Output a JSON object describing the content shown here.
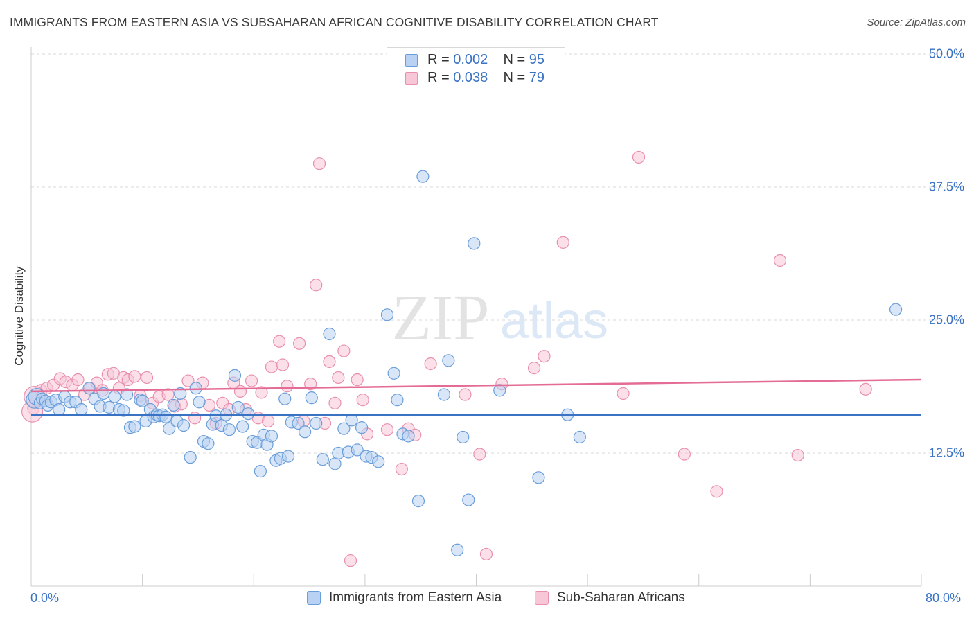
{
  "title": "IMMIGRANTS FROM EASTERN ASIA VS SUBSAHARAN AFRICAN COGNITIVE DISABILITY CORRELATION CHART",
  "source": "Source: ZipAtlas.com",
  "watermark": {
    "zip": "ZIP",
    "atlas": "atlas"
  },
  "legend_top": {
    "rows": [
      {
        "r_label": "R = ",
        "r_value": "0.002",
        "n_label": "N = ",
        "n_value": "95"
      },
      {
        "r_label": "R = ",
        "r_value": "0.038",
        "n_label": "N = ",
        "n_value": "79"
      }
    ]
  },
  "colors": {
    "blue_fill": "#b9d2f3",
    "blue_stroke": "#6a9ed9",
    "blue_line": "#3a72c4",
    "pink_fill": "#f7c7d7",
    "pink_stroke": "#e98fae",
    "pink_line": "#e46b95",
    "tick_text": "#3a72c4",
    "grid": "#d9d9d9"
  },
  "chart_data": {
    "type": "scatter",
    "title": "IMMIGRANTS FROM EASTERN ASIA VS SUBSAHARAN AFRICAN COGNITIVE DISABILITY CORRELATION CHART",
    "xlabel": "",
    "ylabel": "Cognitive Disability",
    "xlim": [
      0,
      80
    ],
    "ylim": [
      0,
      50
    ],
    "x_tick_labels": [
      "0.0%",
      "80.0%"
    ],
    "y_ticks": [
      12.5,
      25.0,
      37.5,
      50.0
    ],
    "y_tick_labels": [
      "12.5%",
      "25.0%",
      "37.5%",
      "50.0%"
    ],
    "grid": "horizontal dashed",
    "legend_position": "top-center and bottom",
    "series": [
      {
        "name": "Immigrants from Eastern Asia",
        "color": "#6a9ed9",
        "R": 0.002,
        "N": 95,
        "trend": {
          "x": [
            0,
            80
          ],
          "y": [
            16.1,
            16.1
          ]
        },
        "points": [
          [
            0.3,
            17.5
          ],
          [
            0.5,
            17.8
          ],
          [
            0.8,
            17.2
          ],
          [
            1.0,
            17.6
          ],
          [
            1.3,
            17.4
          ],
          [
            1.5,
            17.0
          ],
          [
            1.8,
            17.3
          ],
          [
            2.2,
            17.5
          ],
          [
            2.5,
            16.6
          ],
          [
            3.0,
            17.8
          ],
          [
            3.5,
            17.3
          ],
          [
            4.0,
            17.3
          ],
          [
            4.5,
            16.6
          ],
          [
            5.2,
            18.6
          ],
          [
            5.7,
            17.6
          ],
          [
            6.2,
            16.9
          ],
          [
            6.5,
            18.1
          ],
          [
            7.0,
            16.8
          ],
          [
            7.5,
            17.8
          ],
          [
            7.9,
            16.6
          ],
          [
            8.3,
            16.5
          ],
          [
            8.6,
            18.0
          ],
          [
            8.9,
            14.9
          ],
          [
            9.3,
            15.0
          ],
          [
            9.8,
            17.5
          ],
          [
            10.0,
            17.4
          ],
          [
            10.3,
            15.5
          ],
          [
            10.7,
            16.6
          ],
          [
            11.0,
            15.9
          ],
          [
            11.3,
            16.1
          ],
          [
            11.5,
            16.0
          ],
          [
            11.8,
            16.1
          ],
          [
            12.1,
            15.9
          ],
          [
            12.4,
            14.8
          ],
          [
            12.8,
            17.0
          ],
          [
            13.1,
            15.5
          ],
          [
            13.4,
            18.1
          ],
          [
            13.7,
            15.1
          ],
          [
            14.3,
            12.1
          ],
          [
            14.8,
            18.6
          ],
          [
            15.1,
            17.3
          ],
          [
            15.5,
            13.6
          ],
          [
            15.9,
            13.4
          ],
          [
            16.3,
            15.2
          ],
          [
            16.6,
            16.0
          ],
          [
            17.1,
            15.1
          ],
          [
            17.5,
            16.1
          ],
          [
            17.8,
            14.7
          ],
          [
            18.3,
            19.8
          ],
          [
            18.6,
            16.8
          ],
          [
            19.0,
            15.0
          ],
          [
            19.5,
            16.2
          ],
          [
            19.9,
            13.6
          ],
          [
            20.3,
            13.5
          ],
          [
            20.6,
            10.8
          ],
          [
            20.9,
            14.2
          ],
          [
            21.2,
            13.3
          ],
          [
            21.6,
            14.1
          ],
          [
            22.0,
            11.8
          ],
          [
            22.4,
            12.0
          ],
          [
            22.8,
            17.6
          ],
          [
            23.1,
            12.2
          ],
          [
            23.4,
            15.4
          ],
          [
            24.0,
            15.3
          ],
          [
            24.6,
            14.5
          ],
          [
            25.2,
            17.7
          ],
          [
            25.6,
            15.3
          ],
          [
            26.2,
            11.9
          ],
          [
            26.8,
            23.7
          ],
          [
            27.3,
            11.5
          ],
          [
            27.6,
            12.5
          ],
          [
            28.1,
            14.8
          ],
          [
            28.5,
            12.6
          ],
          [
            28.8,
            15.6
          ],
          [
            29.3,
            12.8
          ],
          [
            29.7,
            14.9
          ],
          [
            30.1,
            12.2
          ],
          [
            30.6,
            12.1
          ],
          [
            31.2,
            11.7
          ],
          [
            32.0,
            25.5
          ],
          [
            32.6,
            20.0
          ],
          [
            32.9,
            17.5
          ],
          [
            33.4,
            14.3
          ],
          [
            33.9,
            14.1
          ],
          [
            34.8,
            8.0
          ],
          [
            35.2,
            38.5
          ],
          [
            37.1,
            18.0
          ],
          [
            37.5,
            21.2
          ],
          [
            38.3,
            3.4
          ],
          [
            38.8,
            14.0
          ],
          [
            39.3,
            8.1
          ],
          [
            39.8,
            32.2
          ],
          [
            42.1,
            18.4
          ],
          [
            45.6,
            10.2
          ],
          [
            48.2,
            16.1
          ],
          [
            49.3,
            14.0
          ],
          [
            77.7,
            26.0
          ]
        ]
      },
      {
        "name": "Sub-Saharan Africans",
        "color": "#e98fae",
        "R": 0.038,
        "N": 79,
        "trend": {
          "x": [
            0,
            80
          ],
          "y": [
            18.3,
            19.4
          ]
        },
        "points": [
          [
            0.2,
            16.7
          ],
          [
            0.5,
            17.4
          ],
          [
            0.9,
            18.4
          ],
          [
            1.4,
            18.6
          ],
          [
            2.0,
            18.9
          ],
          [
            2.6,
            19.5
          ],
          [
            3.1,
            19.2
          ],
          [
            3.7,
            18.9
          ],
          [
            4.2,
            19.4
          ],
          [
            4.8,
            18.0
          ],
          [
            5.3,
            18.6
          ],
          [
            5.9,
            19.1
          ],
          [
            6.4,
            18.4
          ],
          [
            6.9,
            19.9
          ],
          [
            7.4,
            20.0
          ],
          [
            7.9,
            18.6
          ],
          [
            8.3,
            19.6
          ],
          [
            8.7,
            19.4
          ],
          [
            9.3,
            19.7
          ],
          [
            9.8,
            17.9
          ],
          [
            10.4,
            19.6
          ],
          [
            10.9,
            17.2
          ],
          [
            11.5,
            17.8
          ],
          [
            12.3,
            18.0
          ],
          [
            12.9,
            16.9
          ],
          [
            13.5,
            17.1
          ],
          [
            14.1,
            19.3
          ],
          [
            14.7,
            15.8
          ],
          [
            15.4,
            19.1
          ],
          [
            16.0,
            17.0
          ],
          [
            16.6,
            15.3
          ],
          [
            17.2,
            17.2
          ],
          [
            17.8,
            16.6
          ],
          [
            18.2,
            19.1
          ],
          [
            18.8,
            18.3
          ],
          [
            19.3,
            16.6
          ],
          [
            19.8,
            19.3
          ],
          [
            20.4,
            15.8
          ],
          [
            20.7,
            18.2
          ],
          [
            21.3,
            15.5
          ],
          [
            21.6,
            20.6
          ],
          [
            22.3,
            23.0
          ],
          [
            22.6,
            20.8
          ],
          [
            23.0,
            18.8
          ],
          [
            24.1,
            22.8
          ],
          [
            24.5,
            15.5
          ],
          [
            25.1,
            19.0
          ],
          [
            25.6,
            28.3
          ],
          [
            25.9,
            39.7
          ],
          [
            26.4,
            15.3
          ],
          [
            26.8,
            21.1
          ],
          [
            27.3,
            17.2
          ],
          [
            27.6,
            19.6
          ],
          [
            28.1,
            22.1
          ],
          [
            28.7,
            2.4
          ],
          [
            29.3,
            19.4
          ],
          [
            29.8,
            17.5
          ],
          [
            30.2,
            14.3
          ],
          [
            32.0,
            14.7
          ],
          [
            33.3,
            11.0
          ],
          [
            33.9,
            14.8
          ],
          [
            34.5,
            14.2
          ],
          [
            35.9,
            20.9
          ],
          [
            39.0,
            18.0
          ],
          [
            40.3,
            12.4
          ],
          [
            40.9,
            3.0
          ],
          [
            42.3,
            19.0
          ],
          [
            45.2,
            20.5
          ],
          [
            46.1,
            21.6
          ],
          [
            47.8,
            32.3
          ],
          [
            53.2,
            18.1
          ],
          [
            54.6,
            40.3
          ],
          [
            58.7,
            12.4
          ],
          [
            61.6,
            8.9
          ],
          [
            67.3,
            30.6
          ],
          [
            68.9,
            12.3
          ],
          [
            75.0,
            18.5
          ],
          [
            0.1,
            16.4
          ],
          [
            0.3,
            17.8
          ]
        ]
      }
    ]
  },
  "legend_bottom": {
    "items": [
      {
        "label": "Immigrants from Eastern Asia"
      },
      {
        "label": "Sub-Saharan Africans"
      }
    ]
  }
}
